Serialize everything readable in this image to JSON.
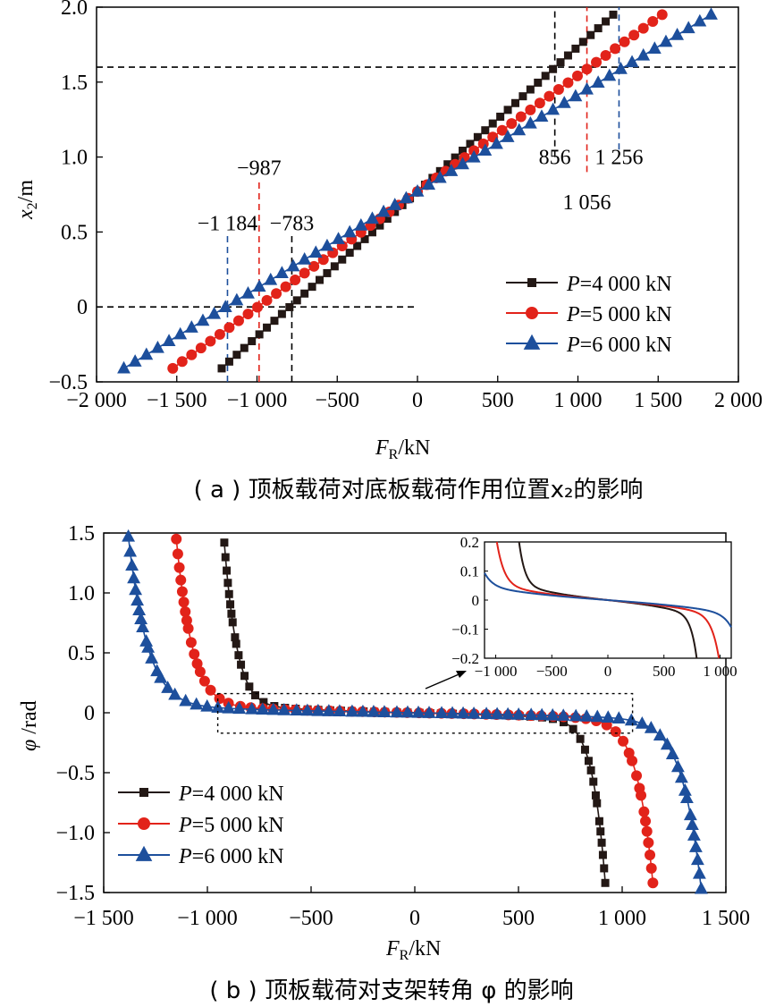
{
  "chart_data": [
    {
      "type": "line",
      "caption": "( a ) 顶板载荷对底板载荷作用位置x₂的影响",
      "xlabel": "F",
      "xlabel_sub": "R",
      "xlabel_unit": "/kN",
      "ylabel": "x",
      "ylabel_sub": "2",
      "ylabel_unit": "/m",
      "xlim": [
        -2000,
        2000
      ],
      "ylim": [
        -0.5,
        2.0
      ],
      "xticks": [
        -2000,
        -1500,
        -1000,
        -500,
        0,
        500,
        1000,
        1500,
        2000
      ],
      "xtick_labels": [
        "−2 000",
        "−1 500",
        "−1 000",
        "−500",
        "0",
        "500",
        "1 000",
        "1 500",
        "2 000"
      ],
      "yticks": [
        -0.5,
        0,
        0.5,
        1.0,
        1.5,
        2.0
      ],
      "ytick_labels": [
        "−0.5",
        "0",
        "0.5",
        "1.0",
        "1.5",
        "2.0"
      ],
      "legend_position": "bottom-right",
      "grid": false,
      "series": [
        {
          "name": "P=4 000 kN",
          "legend_p": "P",
          "legend_rest": "=4 000 kN",
          "marker": "square",
          "color": "#231815",
          "x_start": -1220,
          "x_end": 1220,
          "y_start": -0.41,
          "y_end": 1.95
        },
        {
          "name": "P=5 000 kN",
          "legend_p": "P",
          "legend_rest": "=5 000 kN",
          "marker": "circle",
          "color": "#e2231a",
          "x_start": -1525,
          "x_end": 1525,
          "y_start": -0.41,
          "y_end": 1.95
        },
        {
          "name": "P=6 000 kN",
          "legend_p": "P",
          "legend_rest": "=6 000 kN",
          "marker": "triangle",
          "color": "#1d4f9c",
          "x_start": -1830,
          "x_end": 1830,
          "y_start": -0.41,
          "y_end": 1.95
        }
      ],
      "reference_lines": [
        {
          "axis": "y",
          "value": 1.6,
          "from": -2000,
          "to": 2000,
          "color": "#000000"
        },
        {
          "axis": "y",
          "value": 0,
          "from": -2000,
          "to": 0,
          "color": "#000000"
        },
        {
          "axis": "x",
          "value": 856,
          "from": 1.0,
          "to": 2.0,
          "color": "#000000"
        },
        {
          "axis": "x",
          "value": 1056,
          "from": 0.9,
          "to": 2.0,
          "color": "#e2231a"
        },
        {
          "axis": "x",
          "value": 1256,
          "from": 1.05,
          "to": 2.0,
          "color": "#1d4f9c"
        },
        {
          "axis": "x",
          "value": -783,
          "from": -0.5,
          "to": 0.48,
          "color": "#000000"
        },
        {
          "axis": "x",
          "value": -987,
          "from": -0.5,
          "to": 0.85,
          "color": "#e2231a"
        },
        {
          "axis": "x",
          "value": -1184,
          "from": -0.5,
          "to": 0.48,
          "color": "#1d4f9c"
        }
      ],
      "annotations": [
        {
          "text": "856",
          "x": 856,
          "y": 1.0
        },
        {
          "text": "1 256",
          "x": 1256,
          "y": 1.0
        },
        {
          "text": "1 056",
          "x": 1056,
          "y": 0.7
        },
        {
          "text": "−987",
          "x": -987,
          "y": 0.93
        },
        {
          "text": "−1 184",
          "x": -1184,
          "y": 0.56
        },
        {
          "text": "−783",
          "x": -783,
          "y": 0.56
        }
      ]
    },
    {
      "type": "line",
      "caption": "( b ) 顶板载荷对支架转角 φ 的影响",
      "xlabel": "F",
      "xlabel_sub": "R",
      "xlabel_unit": "/kN",
      "ylabel": "φ",
      "ylabel_unit": " /rad",
      "xlim": [
        -1500,
        1500
      ],
      "ylim": [
        -1.5,
        1.5
      ],
      "xticks": [
        -1500,
        -1000,
        -500,
        0,
        500,
        1000,
        1500
      ],
      "xtick_labels": [
        "−1 500",
        "−1 000",
        "−500",
        "0",
        "500",
        "1 000",
        "1 500"
      ],
      "yticks": [
        -1.5,
        -1.0,
        -0.5,
        0,
        0.5,
        1.0,
        1.5
      ],
      "ytick_labels": [
        "−1.5",
        "−1.0",
        "−0.5",
        "0",
        "0.5",
        "1.0",
        "1.5"
      ],
      "legend_position": "bottom-left",
      "grid": false,
      "series": [
        {
          "name": "P=4 000 kN",
          "legend_p": "P",
          "legend_rest": "=4 000 kN",
          "marker": "square",
          "color": "#231815",
          "x_asymptote": 800,
          "phi_start": 1.42,
          "phi_end": -1.42
        },
        {
          "name": "P=5 000 kN",
          "legend_p": "P",
          "legend_rest": "=5 000 kN",
          "marker": "circle",
          "color": "#e2231a",
          "x_asymptote": 1000,
          "phi_start": 1.45,
          "phi_end": -1.42
        },
        {
          "name": "P=6 000 kN",
          "legend_p": "P",
          "legend_rest": "=6 000 kN",
          "marker": "triangle",
          "color": "#1d4f9c",
          "x_asymptote": 1200,
          "phi_start": 1.47,
          "phi_end": -1.47
        }
      ],
      "zoom_box": {
        "x": [
          -950,
          1050
        ],
        "y": [
          -0.17,
          0.16
        ]
      },
      "inset": {
        "xlim": [
          -1100,
          1100
        ],
        "ylim": [
          -0.2,
          0.2
        ],
        "xticks": [
          -1000,
          -500,
          0,
          500,
          1000
        ],
        "xtick_labels": [
          "−1 000",
          "−500",
          "0",
          "500",
          "1 000"
        ],
        "yticks": [
          -0.2,
          -0.1,
          0,
          0.1,
          0.2
        ],
        "ytick_labels": [
          "−0.2",
          "−0.1",
          "0",
          "0.1",
          "0.2"
        ]
      }
    }
  ]
}
